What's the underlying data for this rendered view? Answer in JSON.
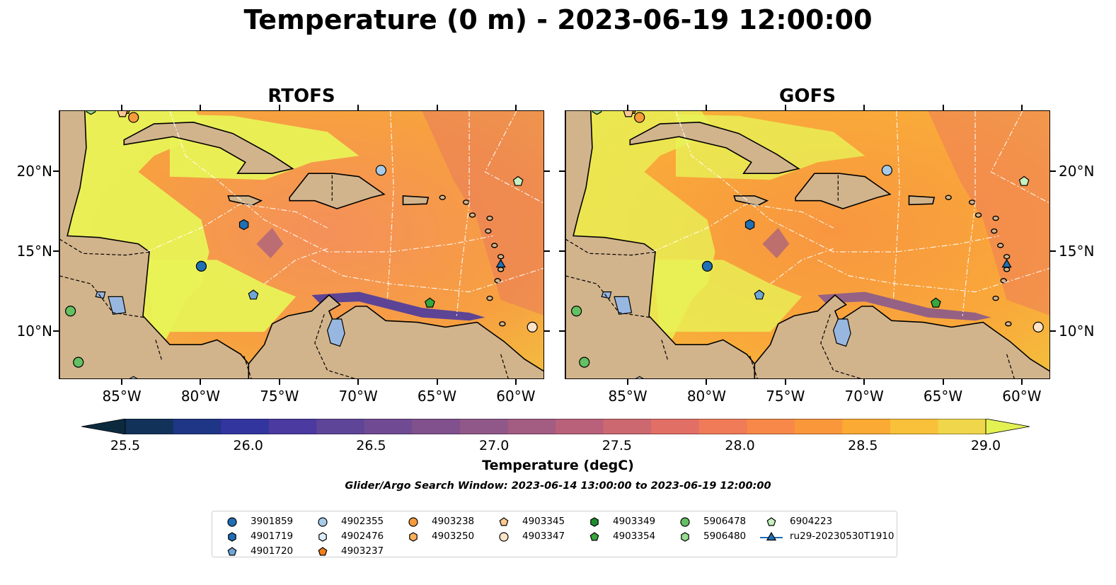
{
  "figure": {
    "title": "Temperature (0 m) - 2023-06-19 12:00:00",
    "search_window": "Glider/Argo Search Window: 2023-06-14 13:00:00 to 2023-06-19 12:00:00"
  },
  "panels": [
    {
      "title": "RTOFS"
    },
    {
      "title": "GOFS"
    }
  ],
  "axes": {
    "lon_labels": [
      "85°W",
      "80°W",
      "75°W",
      "70°W",
      "65°W",
      "60°W"
    ],
    "lon_values": [
      -85,
      -80,
      -75,
      -70,
      -65,
      -60
    ],
    "lat_labels": [
      "20°N",
      "15°N",
      "10°N"
    ],
    "lat_values": [
      20,
      15,
      10
    ],
    "lon_range": [
      -89,
      -58.2
    ],
    "lat_range": [
      7,
      23.8
    ]
  },
  "colorbar": {
    "label": "Temperature (degC)",
    "tick_labels": [
      "25.5",
      "26.0",
      "26.5",
      "27.0",
      "27.5",
      "28.0",
      "28.5",
      "29.0"
    ],
    "range": [
      25.25,
      29.25
    ],
    "step": 0.25,
    "extend": "both",
    "colors": [
      "#0b2a3e",
      "#13325a",
      "#1f3585",
      "#33359f",
      "#4b3a9f",
      "#5f4598",
      "#704b93",
      "#80518d",
      "#905888",
      "#a35c82",
      "#b9617a",
      "#cc6870",
      "#e16f66",
      "#ef7b58",
      "#f78849",
      "#fb973b",
      "#fbaa33",
      "#f9c13a",
      "#efd64a",
      "#e4f153"
    ]
  },
  "colors": {
    "land": "#d2b48c",
    "lakes": "#98b7e0",
    "ocean_warm": "#f7a13c",
    "ocean_cool": "#e9f256"
  },
  "legend": {
    "columns": [
      [
        {
          "label": "3901859",
          "marker": "circle",
          "color": "#1f6fb4"
        },
        {
          "label": "4901719",
          "marker": "hexagon",
          "color": "#1f6fb4"
        },
        {
          "label": "4901720",
          "marker": "pentagon",
          "color": "#6ea6d8"
        }
      ],
      [
        {
          "label": "4902355",
          "marker": "circle",
          "color": "#a6cbe8"
        },
        {
          "label": "4902476",
          "marker": "hexagon",
          "color": "#dceefb"
        },
        {
          "label": "4903237",
          "marker": "pentagon",
          "color": "#f07f1a"
        }
      ],
      [
        {
          "label": "4903238",
          "marker": "circle",
          "color": "#f79a3a"
        },
        {
          "label": "4903250",
          "marker": "hexagon",
          "color": "#fbb05a"
        }
      ],
      [
        {
          "label": "4903345",
          "marker": "pentagon",
          "color": "#fcc992"
        },
        {
          "label": "4903347",
          "marker": "circle",
          "color": "#fde3c8"
        }
      ],
      [
        {
          "label": "4903349",
          "marker": "hexagon",
          "color": "#1e8c2e"
        },
        {
          "label": "4903354",
          "marker": "pentagon",
          "color": "#37a83e"
        }
      ],
      [
        {
          "label": "5906478",
          "marker": "circle",
          "color": "#63c063"
        },
        {
          "label": "5906480",
          "marker": "hexagon",
          "color": "#95de8e"
        }
      ],
      [
        {
          "label": "6904223",
          "marker": "pentagon",
          "color": "#c7f0c0"
        },
        {
          "label": "ru29-20230530T1910",
          "marker": "triangle-line",
          "color": "#1f6fb4"
        }
      ]
    ]
  },
  "platforms": [
    {
      "id": "3901859",
      "marker": "circle",
      "color": "#1f6fb4",
      "lon": -80.0,
      "lat": 14.1
    },
    {
      "id": "4901719",
      "marker": "hexagon",
      "color": "#1f6fb4",
      "lon": -77.3,
      "lat": 16.7
    },
    {
      "id": "4901720",
      "marker": "pentagon",
      "color": "#6ea6d8",
      "lon": -76.7,
      "lat": 12.3
    },
    {
      "id": "4902355",
      "marker": "circle",
      "color": "#a6cbe8",
      "lon": -68.6,
      "lat": 20.1
    },
    {
      "id": "4902476",
      "marker": "hexagon",
      "color": "#dceefb",
      "lon": -84.3,
      "lat": 6.9
    },
    {
      "id": "4903237",
      "marker": "pentagon",
      "color": "#f07f1a",
      "lon": -84.8,
      "lat": 23.9
    },
    {
      "id": "4903238",
      "marker": "circle",
      "color": "#f79a3a",
      "lon": -84.3,
      "lat": 23.4
    },
    {
      "id": "4903345",
      "marker": "pentagon",
      "color": "#fcc992",
      "lon": -85.0,
      "lat": 23.7
    },
    {
      "id": "4903347",
      "marker": "circle",
      "color": "#fde3c8",
      "lon": -59.0,
      "lat": 10.3
    },
    {
      "id": "4903354",
      "marker": "pentagon",
      "color": "#37a83e",
      "lon": -65.5,
      "lat": 11.8
    },
    {
      "id": "5906478",
      "marker": "circle",
      "color": "#63c063",
      "lon": -88.3,
      "lat": 11.3
    },
    {
      "id": "5906478b",
      "marker": "circle",
      "color": "#63c063",
      "lon": -87.8,
      "lat": 8.1
    },
    {
      "id": "6904223",
      "marker": "pentagon",
      "color": "#c7f0c0",
      "lon": -59.9,
      "lat": 19.4
    },
    {
      "id": "5906480",
      "marker": "hexagon",
      "color": "#95de8e",
      "lon": -87.0,
      "lat": 23.9
    },
    {
      "id": "ru29-20230530T1910",
      "marker": "triangle",
      "color": "#1f6fb4",
      "lon": -61.0,
      "lat": 14.2
    }
  ]
}
